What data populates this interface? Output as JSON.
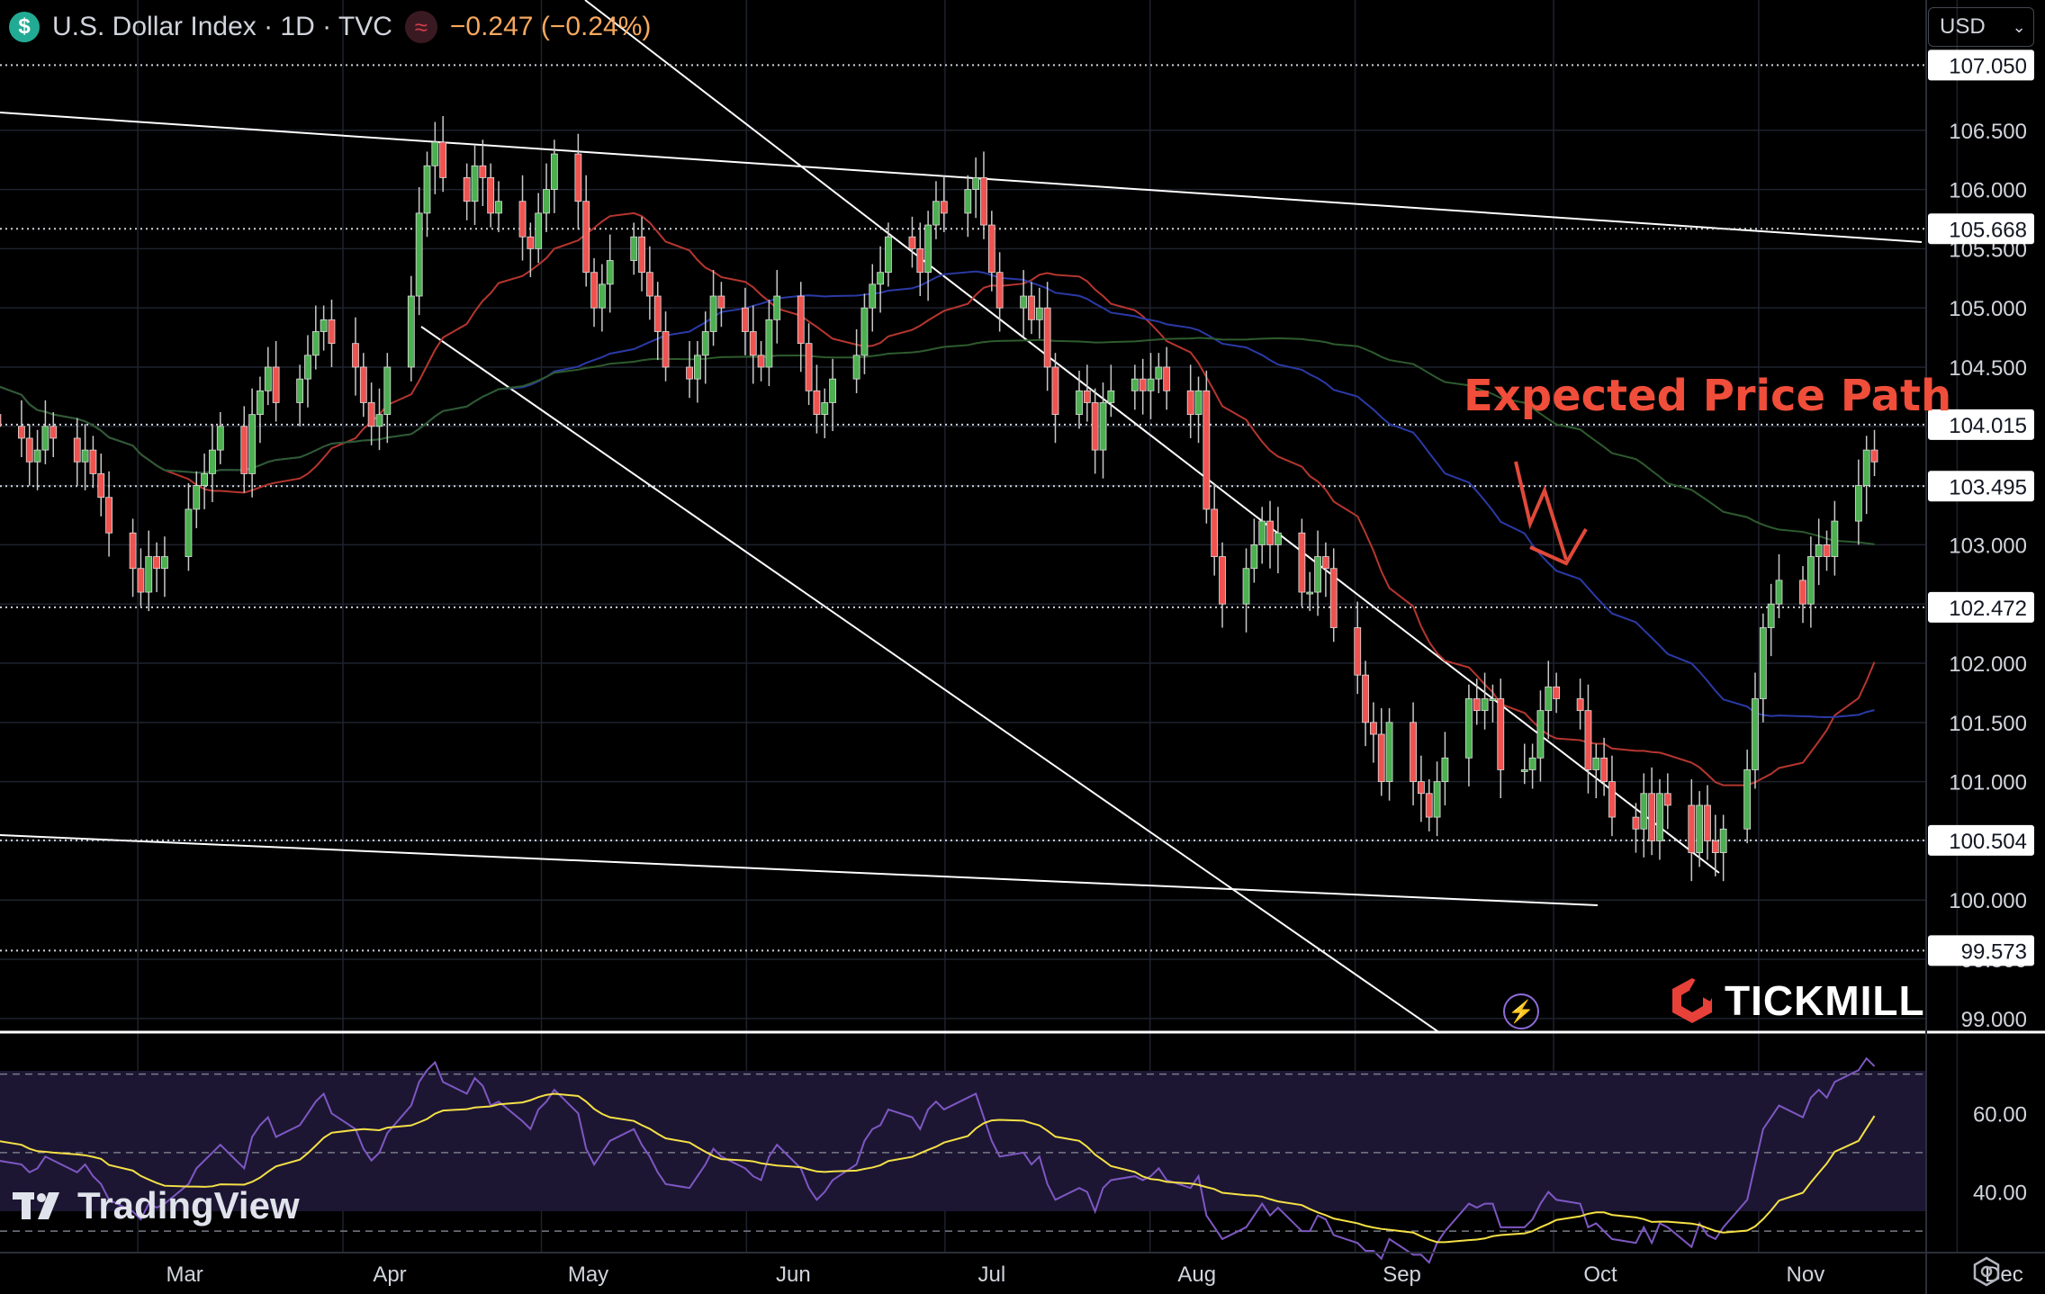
{
  "header": {
    "symbol_icon": "dollar-icon",
    "symbol_glyph": "$",
    "title": "U.S. Dollar Index · 1D · TVC",
    "change": "−0.247 (−0.24%)",
    "indicator_icon": "wave-icon",
    "indicator_glyph": "≈"
  },
  "currency": {
    "label": "USD"
  },
  "annotation": "Expected Price Path",
  "brands": {
    "tickmill": "TICKMILL",
    "tradingview": "TradingView"
  },
  "colors": {
    "up": "#4caf50",
    "down": "#ef5350",
    "ma_fast": "#b5362f",
    "ma_mid": "#2b3aa6",
    "ma_slow": "#2e5b2e",
    "rsi": "#7e57c2",
    "rsi_ma": "#f5e046",
    "annotation": "#f04e3a"
  },
  "chart_data": [
    {
      "type": "candlestick",
      "title": "U.S. Dollar Index · 1D · TVC",
      "ylim": [
        98.9,
        107.6
      ],
      "yticks": [
        "106.500",
        "106.000",
        "105.500",
        "105.000",
        "104.500",
        "104.000",
        "103.500",
        "103.000",
        "102.500",
        "102.000",
        "101.500",
        "101.000",
        "100.500",
        "100.000",
        "99.500",
        "99.000"
      ],
      "ytick_values": [
        106.5,
        106.0,
        105.5,
        105.0,
        104.5,
        104.0,
        103.5,
        103.0,
        102.5,
        102.0,
        101.5,
        101.0,
        100.5,
        100.0,
        99.5,
        99.0
      ],
      "price_labels": [
        {
          "label": "107.050",
          "value": 107.05
        },
        {
          "label": "105.668",
          "value": 105.668
        },
        {
          "label": "104.015",
          "value": 104.015
        },
        {
          "label": "103.495",
          "value": 103.495
        },
        {
          "label": "102.472",
          "value": 102.472
        },
        {
          "label": "100.504",
          "value": 100.504
        },
        {
          "label": "99.573",
          "value": 99.573
        }
      ],
      "xticks": [
        {
          "label": "Mar",
          "day": 29
        },
        {
          "label": "Apr",
          "day": 60
        },
        {
          "label": "May",
          "day": 90
        },
        {
          "label": "Jun",
          "day": 121
        },
        {
          "label": "Jul",
          "day": 151
        },
        {
          "label": "Aug",
          "day": 182
        },
        {
          "label": "Sep",
          "day": 213
        },
        {
          "label": "Oct",
          "day": 243
        },
        {
          "label": "Nov",
          "day": 274
        },
        {
          "label": "Dec",
          "day": 304
        }
      ],
      "x_unit": "day of year 2024",
      "closes": [
        104.8,
        104.5,
        104.3,
        104.1,
        104.0,
        103.9,
        103.7,
        103.8,
        104.0,
        103.9,
        103.7,
        103.8,
        103.6,
        103.4,
        103.1,
        102.8,
        102.6,
        102.9,
        102.8,
        102.9,
        103.3,
        103.5,
        103.6,
        103.8,
        104.0,
        103.6,
        104.1,
        104.3,
        104.5,
        104.2,
        104.4,
        104.6,
        104.8,
        104.9,
        104.7,
        104.5,
        104.2,
        104.0,
        104.1,
        104.5,
        105.1,
        105.8,
        106.2,
        106.4,
        106.1,
        105.9,
        106.2,
        106.1,
        105.8,
        105.9,
        105.6,
        105.5,
        105.8,
        106.0,
        106.3,
        105.9,
        105.3,
        105.0,
        105.2,
        105.4,
        105.6,
        105.3,
        105.1,
        104.8,
        104.5,
        104.4,
        104.6,
        104.8,
        105.1,
        105.0,
        104.8,
        104.6,
        104.5,
        104.9,
        105.1,
        104.7,
        104.3,
        104.1,
        104.2,
        104.4,
        104.6,
        105.0,
        105.2,
        105.3,
        105.6,
        105.5,
        105.3,
        105.7,
        105.9,
        105.8,
        106.0,
        106.1,
        105.7,
        105.3,
        105.0,
        105.1,
        104.9,
        105.0,
        104.5,
        104.1,
        104.3,
        104.2,
        103.8,
        104.2,
        104.3,
        104.4,
        104.3,
        104.4,
        104.5,
        104.3,
        104.1,
        104.3,
        103.3,
        102.9,
        102.5,
        102.8,
        103.0,
        103.2,
        103.0,
        103.1,
        102.6,
        102.6,
        102.9,
        102.8,
        102.3,
        101.9,
        101.5,
        101.4,
        101.0,
        101.5,
        101.0,
        100.9,
        100.7,
        101.0,
        101.2,
        101.7,
        101.6,
        101.7,
        101.7,
        101.1,
        101.1,
        101.2,
        101.6,
        101.8,
        101.7,
        101.6,
        101.1,
        101.2,
        101.0,
        100.7,
        100.6,
        100.9,
        100.5,
        100.9,
        100.8,
        100.4,
        100.8,
        100.5,
        100.4,
        100.6,
        101.1,
        101.7,
        102.3,
        102.5,
        102.7,
        102.5,
        102.9,
        103.0,
        102.9,
        103.2,
        103.5,
        103.8,
        103.7
      ],
      "series": [
        {
          "name": "",
          "values": []
        }
      ]
    },
    {
      "type": "line",
      "title": "",
      "ylim": [
        25,
        80
      ],
      "yticks": [
        "60.00",
        "40.00"
      ],
      "ytick_values": [
        60,
        40
      ],
      "bands": [
        70,
        50,
        30
      ],
      "rsi_values": [
        60,
        55,
        52,
        50,
        48,
        47,
        45,
        46,
        49,
        48,
        45,
        47,
        44,
        42,
        38,
        35,
        33,
        37,
        36,
        37,
        42,
        46,
        48,
        50,
        52,
        46,
        54,
        57,
        59,
        54,
        57,
        60,
        63,
        65,
        60,
        56,
        51,
        48,
        50,
        55,
        62,
        68,
        71,
        73,
        68,
        65,
        69,
        67,
        62,
        63,
        58,
        56,
        61,
        63,
        66,
        60,
        51,
        47,
        50,
        53,
        56,
        52,
        49,
        45,
        42,
        41,
        44,
        47,
        51,
        49,
        46,
        44,
        43,
        49,
        52,
        46,
        41,
        38,
        40,
        43,
        47,
        53,
        56,
        57,
        61,
        59,
        56,
        61,
        63,
        61,
        64,
        65,
        59,
        53,
        49,
        50,
        47,
        49,
        42,
        38,
        41,
        40,
        35,
        41,
        43,
        44,
        43,
        44,
        46,
        43,
        41,
        44,
        34,
        31,
        28,
        31,
        34,
        37,
        34,
        36,
        30,
        30,
        34,
        33,
        29,
        27,
        25,
        25,
        23,
        28,
        24,
        24,
        22,
        27,
        30,
        37,
        36,
        37,
        37,
        31,
        31,
        33,
        37,
        40,
        38,
        37,
        31,
        32,
        30,
        28,
        27,
        31,
        27,
        32,
        31,
        26,
        32,
        29,
        28,
        31,
        38,
        47,
        56,
        59,
        62,
        59,
        64,
        66,
        64,
        68,
        71,
        74,
        72
      ]
    }
  ]
}
